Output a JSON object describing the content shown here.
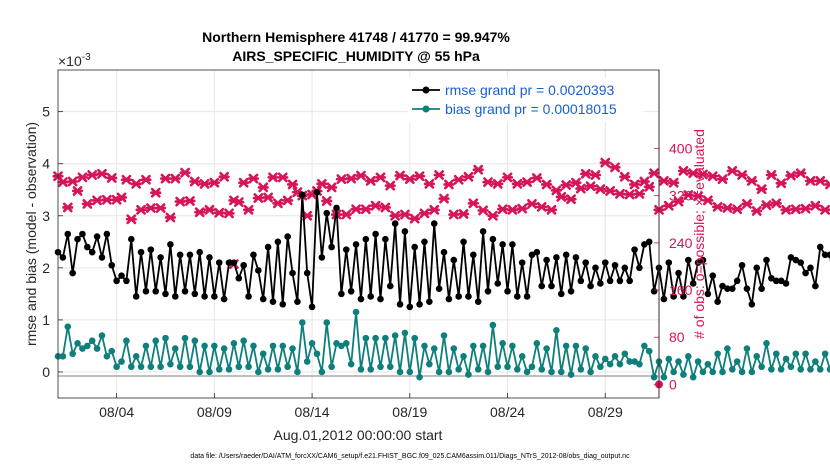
{
  "figure": {
    "title_line1": "Northern Hemisphere 41748 / 41770 = 99.947%",
    "title_line2": "AIRS_SPECIFIC_HUMIDITY @ 55 hPa",
    "exponent_label": "×10",
    "exponent_power": "-3",
    "xlabel": "Aug.01,2012 00:00:00 start",
    "ylabel_left": "rmse and bias (model - observation)",
    "ylabel_right": "# of obs: o=possible; ×=evaluated",
    "footer": "data file: /Users/raeder/DAI/ATM_forcXX/CAM6_setup/f.e21.FHIST_BGC.f09_025.CAM6assim.011/Diags_NTrS_2012-08/obs_diag_output.nc",
    "colors": {
      "rmse": "#000000",
      "bias": "#0e7f7a",
      "obs": "#d6145a",
      "legend_text": "#1a5fd0",
      "zero_line": "#aaaaaa"
    }
  },
  "chart_data": {
    "type": "line",
    "x_tick_labels": [
      "08/04",
      "08/09",
      "08/14",
      "08/19",
      "08/24",
      "08/29"
    ],
    "x_tick_days": [
      4,
      9,
      14,
      19,
      24,
      29
    ],
    "xlim_days": [
      1.0,
      31.75
    ],
    "time_step_days": 0.25,
    "start_day": 1.0,
    "left_axis": {
      "label": "rmse and bias (model - observation)",
      "scale": 0.001,
      "ylim": [
        -0.5,
        5.8
      ],
      "ticks": [
        "0",
        "1",
        "2",
        "3",
        "4",
        "5"
      ]
    },
    "right_axis": {
      "label": "# of obs: o=possible; ×=evaluated",
      "ylim": [
        -23,
        533
      ],
      "ticks": [
        "0",
        "80",
        "160",
        "240",
        "320",
        "400"
      ]
    },
    "legend": [
      {
        "name": "rmse grand pr = 0.0020393"
      },
      {
        "name": "bias grand pr = 0.00018015"
      }
    ],
    "series": [
      {
        "name": "rmse",
        "axis": "left",
        "values": [
          2.3,
          2.2,
          2.65,
          1.9,
          2.55,
          2.65,
          2.4,
          2.3,
          2.6,
          2.2,
          2.65,
          2.05,
          1.75,
          1.85,
          1.75,
          2.55,
          1.45,
          2.3,
          1.55,
          2.35,
          1.55,
          2.2,
          1.5,
          2.45,
          1.45,
          2.25,
          1.55,
          2.25,
          1.5,
          2.3,
          1.45,
          2.2,
          1.45,
          2.1,
          1.4,
          2.1,
          2.1,
          1.8,
          2.05,
          1.45,
          2.25,
          1.95,
          1.4,
          2.4,
          1.35,
          2.5,
          1.3,
          2.6,
          1.9,
          1.35,
          3.4,
          1.9,
          1.25,
          3.45,
          2.2,
          3.05,
          2.4,
          3.15,
          1.5,
          2.35,
          1.55,
          2.45,
          1.4,
          2.55,
          1.45,
          2.65,
          1.4,
          2.55,
          1.65,
          2.85,
          1.3,
          2.7,
          1.25,
          2.4,
          1.3,
          2.5,
          1.35,
          2.85,
          1.6,
          2.3,
          1.4,
          2.15,
          1.45,
          2.5,
          1.45,
          2.25,
          1.35,
          2.7,
          1.55,
          2.55,
          1.7,
          2.45,
          1.55,
          2.45,
          1.45,
          2.1,
          1.45,
          2.25,
          2.3,
          1.65,
          2.15,
          1.65,
          2.2,
          1.5,
          2.25,
          1.55,
          2.2,
          1.75,
          2.1,
          1.65,
          2.0,
          1.7,
          2.1,
          1.75,
          2.05,
          1.75,
          2.0,
          1.75,
          2.35,
          2.0,
          2.45,
          2.5,
          1.55,
          2.0,
          1.4,
          2.1,
          1.45,
          1.9,
          1.45,
          2.15,
          1.7,
          2.1,
          2.15,
          1.5,
          1.85,
          1.35,
          1.65,
          1.6,
          1.6,
          1.75,
          2.05,
          1.6,
          1.3,
          2.0,
          1.6,
          2.15,
          1.8,
          1.75,
          1.75,
          1.7,
          2.2,
          2.15,
          2.1,
          1.9,
          2.0,
          1.65,
          2.4,
          2.25,
          2.25,
          1.5,
          2.2,
          1.6,
          2.7,
          2.2
        ]
      },
      {
        "name": "bias",
        "axis": "left",
        "values": [
          0.3,
          0.3,
          0.87,
          0.35,
          0.55,
          0.45,
          0.5,
          0.6,
          0.45,
          0.7,
          0.3,
          0.4,
          0.1,
          0.2,
          0.6,
          0.1,
          0.3,
          0.1,
          0.5,
          0.1,
          0.6,
          0.1,
          0.65,
          0.15,
          0.45,
          0.1,
          0.65,
          0.1,
          0.6,
          0.0,
          0.5,
          0.0,
          0.5,
          0.05,
          0.45,
          0.05,
          0.55,
          0.1,
          0.6,
          0.1,
          0.5,
          0.0,
          0.35,
          0.05,
          0.5,
          0.05,
          0.5,
          0.1,
          0.45,
          0.0,
          0.95,
          0.2,
          0.55,
          0.35,
          0.0,
          0.95,
          0.1,
          0.55,
          0.5,
          0.55,
          0.15,
          1.15,
          0.05,
          0.65,
          0.05,
          0.65,
          0.1,
          0.65,
          0.1,
          0.7,
          0.0,
          0.75,
          0.0,
          0.65,
          -0.1,
          0.5,
          0.15,
          0.45,
          0.0,
          0.7,
          0.0,
          0.45,
          0.05,
          0.3,
          -0.05,
          0.5,
          0.05,
          0.5,
          0.0,
          0.9,
          0.1,
          0.55,
          0.1,
          0.5,
          0.05,
          0.3,
          0.0,
          0.1,
          0.55,
          0.05,
          0.45,
          0.0,
          0.8,
          0.0,
          0.5,
          -0.05,
          0.5,
          0.05,
          0.45,
          0.0,
          0.3,
          0.1,
          0.25,
          0.15,
          0.3,
          0.15,
          0.35,
          0.2,
          0.2,
          0.15,
          0.5,
          0.4,
          -0.1,
          0.2,
          -0.1,
          0.25,
          0.0,
          0.2,
          -0.05,
          0.3,
          -0.1,
          0.2,
          0.0,
          0.15,
          0.0,
          0.35,
          0.0,
          0.45,
          0.05,
          0.2,
          0.0,
          0.45,
          0.0,
          0.3,
          0.1,
          0.55,
          0.05,
          0.35,
          0.05,
          0.25,
          0.1,
          0.35,
          0.05,
          0.35,
          0.05,
          0.2,
          0.05,
          0.35,
          0.05,
          0.45,
          0.05,
          0.8,
          0.2
        ]
      },
      {
        "name": "# of obs evaluated",
        "axis": "right",
        "values": [
          353,
          343,
          300,
          344,
          328,
          351,
          306,
          355,
          312,
          357,
          313,
          350,
          313,
          317,
          347,
          280,
          340,
          296,
          347,
          299,
          325,
          299,
          349,
          283,
          349,
          310,
          359,
          311,
          344,
          292,
          340,
          296,
          342,
          291,
          352,
          290,
          312,
          309,
          342,
          296,
          349,
          316,
          334,
          317,
          351,
          307,
          351,
          312,
          339,
          326,
          320,
          286,
          322,
          328,
          340,
          311,
          334,
          288,
          348,
          288,
          349,
          297,
          354,
          297,
          345,
          303,
          351,
          300,
          337,
          286,
          354,
          288,
          348,
          281,
          353,
          290,
          340,
          296,
          355,
          315,
          339,
          288,
          347,
          289,
          352,
          307,
          364,
          295,
          343,
          286,
          340,
          297,
          351,
          296,
          340,
          298,
          343,
          306,
          350,
          301,
          339,
          296,
          329,
          318,
          338,
          314,
          342,
          332,
          357,
          336,
          355,
          331,
          376,
          328,
          368,
          323,
          352,
          322,
          339,
          323,
          344,
          335,
          358,
          296,
          345,
          303,
          342,
          310,
          362,
          321,
          358,
          319,
          356,
          312,
          353,
          301,
          348,
          299,
          362,
          297,
          355,
          306,
          345,
          294,
          331,
          304,
          355,
          307,
          341,
          296,
          354,
          297,
          358,
          298,
          345,
          303,
          345,
          296,
          339,
          296,
          356,
          303,
          359,
          339
        ]
      }
    ],
    "possible_obs_marker": {
      "day": 10.0,
      "value": 204
    },
    "extra_points": [
      {
        "axis": "right",
        "value": 0,
        "at": "right-edge"
      }
    ]
  }
}
